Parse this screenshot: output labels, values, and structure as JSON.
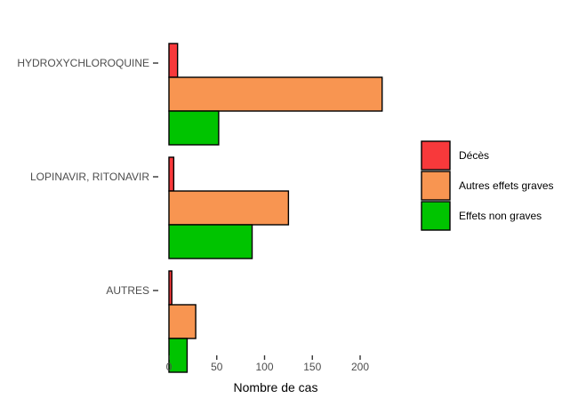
{
  "chart_data": {
    "type": "bar",
    "orientation": "horizontal",
    "categories": [
      "HYDROXYCHLOROQUINE",
      "LOPINAVIR, RITONAVIR",
      "AUTRES"
    ],
    "series": [
      {
        "name": "Décès",
        "values": [
          9,
          5,
          3
        ],
        "color": "#f8393b"
      },
      {
        "name": "Autres effets graves",
        "values": [
          223,
          125,
          28
        ],
        "color": "#f89551"
      },
      {
        "name": "Effets non graves",
        "values": [
          52,
          87,
          19
        ],
        "color": "#00c400"
      }
    ],
    "xlabel": "Nombre de cas",
    "ylabel": "",
    "xlim": [
      0,
      235
    ],
    "xticks": [
      0,
      50,
      100,
      150,
      200
    ],
    "grid": false,
    "legend_position": "right"
  }
}
